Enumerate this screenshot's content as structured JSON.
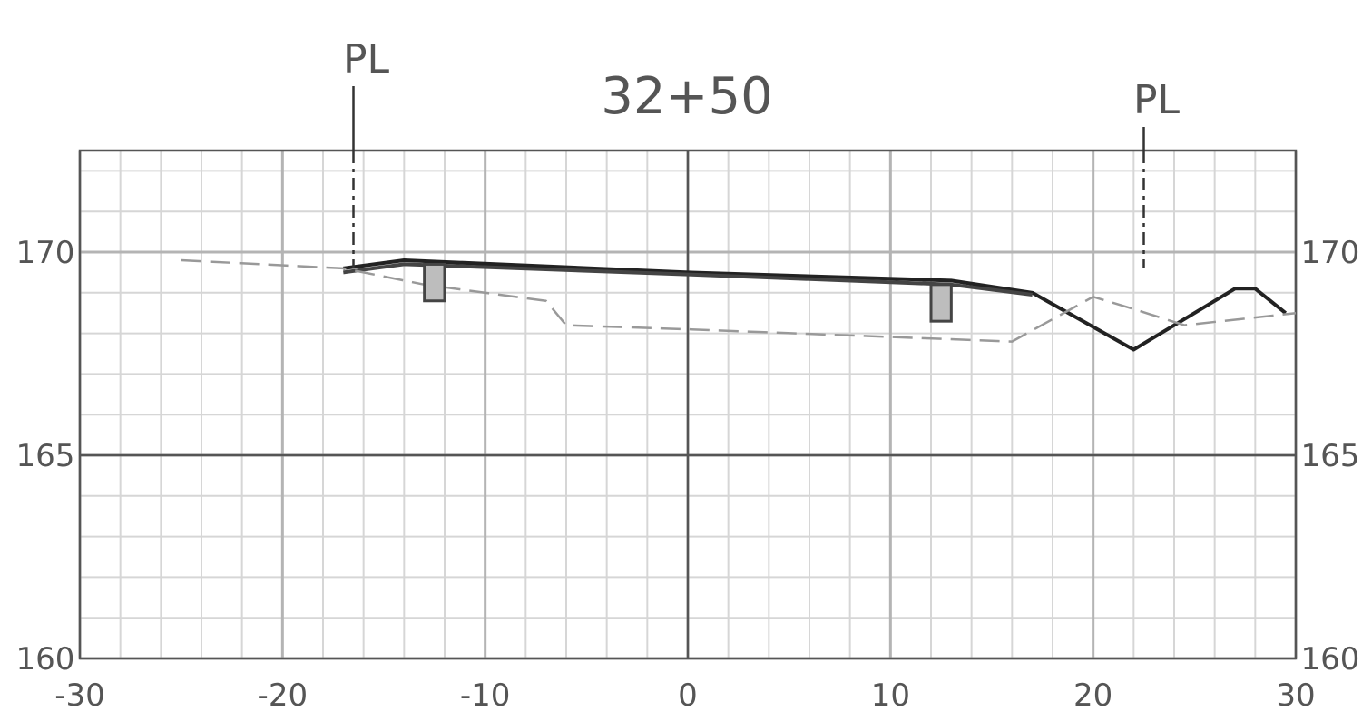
{
  "title": "32+50",
  "property_line_label": "PL",
  "chart_data": {
    "type": "line",
    "title": "32+50",
    "xlabel": "",
    "ylabel": "",
    "xlim": [
      -30,
      30
    ],
    "ylim": [
      160,
      172.5
    ],
    "x_ticks": [
      "-30",
      "-20",
      "-10",
      "0",
      "10",
      "20",
      "30"
    ],
    "y_ticks_left": [
      "160",
      "165",
      "170"
    ],
    "y_ticks_right": [
      "160",
      "165",
      "170"
    ],
    "grid": true,
    "property_lines_x": [
      -16.5,
      22.5
    ],
    "series": [
      {
        "style": "solid",
        "color": "#222222",
        "points": [
          [
            -17,
            169.6
          ],
          [
            -14,
            169.8
          ],
          [
            0,
            169.5
          ],
          [
            13,
            169.3
          ],
          [
            17,
            169.0
          ],
          [
            22,
            167.6
          ],
          [
            27,
            169.1
          ],
          [
            28,
            169.1
          ],
          [
            29.5,
            168.5
          ]
        ]
      },
      {
        "style": "solid",
        "color": "#444444",
        "points": [
          [
            -17,
            169.5
          ],
          [
            -14,
            169.7
          ],
          [
            0,
            169.45
          ],
          [
            13,
            169.2
          ],
          [
            17,
            168.95
          ]
        ]
      },
      {
        "style": "dashed",
        "color": "#999999",
        "points": [
          [
            -25,
            169.8
          ],
          [
            -17,
            169.6
          ],
          [
            -13,
            169.2
          ],
          [
            -7,
            168.8
          ],
          [
            -6,
            168.2
          ],
          [
            0,
            168.1
          ],
          [
            16,
            167.8
          ],
          [
            20,
            168.9
          ],
          [
            22,
            168.6
          ],
          [
            24.5,
            168.2
          ],
          [
            30,
            168.5
          ]
        ]
      }
    ],
    "curbs": [
      {
        "x": -12.5,
        "top": 169.7,
        "bottom": 168.8
      },
      {
        "x": 12.5,
        "top": 169.2,
        "bottom": 168.3
      }
    ]
  }
}
